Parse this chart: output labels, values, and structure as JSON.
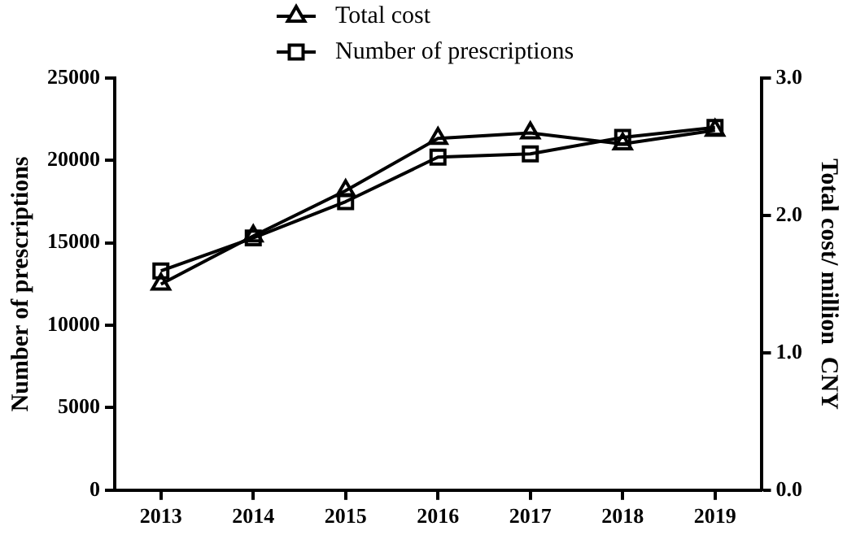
{
  "chart_data": {
    "type": "line",
    "xlabel": null,
    "ylabel": "Number of prescriptions",
    "y2label": "Total cost/ million  CNY",
    "categories": [
      "2013",
      "2014",
      "2015",
      "2016",
      "2017",
      "2018",
      "2019"
    ],
    "series": [
      {
        "name": "Total cost",
        "color": "#000000",
        "axis": "y2",
        "marker": "triangle",
        "values": [
          1.5,
          1.85,
          2.18,
          2.56,
          2.6,
          2.52,
          2.62
        ]
      },
      {
        "name": "Number of prescriptions",
        "color": "#000000",
        "marker": "square",
        "values": [
          13300,
          15300,
          17500,
          20200,
          20400,
          21400,
          22000
        ]
      }
    ],
    "ylim": [
      0,
      25000
    ],
    "yticks": [
      0,
      5000,
      10000,
      15000,
      20000,
      25000
    ],
    "y2lim": [
      0,
      3.0
    ],
    "y2ticks": [
      {
        "value": 0,
        "label": "0.0"
      },
      {
        "value": 1,
        "label": "1.0"
      },
      {
        "value": 2,
        "label": "2.0"
      },
      {
        "value": 3,
        "label": "3.0"
      }
    ],
    "grid": false,
    "legend": "top",
    "line_style": "solid"
  }
}
